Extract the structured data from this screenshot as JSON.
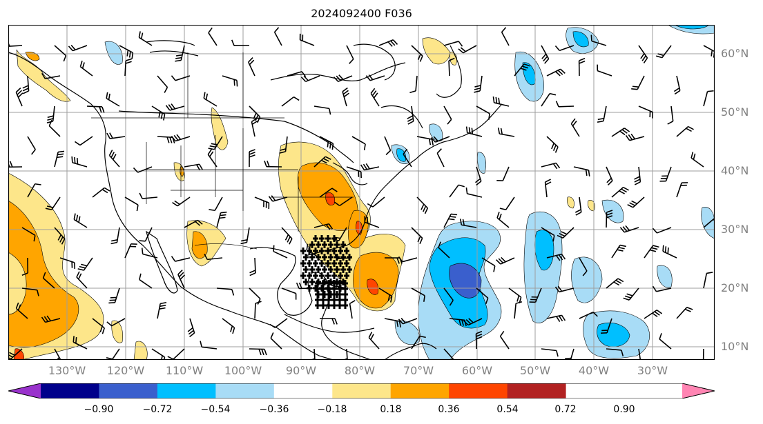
{
  "title": "2024092400 F036",
  "map": {
    "projection": "PlateCarree",
    "lon_range": [
      -143,
      -22
    ],
    "lat_range": [
      8,
      65
    ],
    "lat_labels": [
      "60°N",
      "50°N",
      "40°N",
      "30°N",
      "20°N",
      "10°N"
    ],
    "lon_labels": [
      "130°W",
      "120°W",
      "110°W",
      "100°W",
      "90°W",
      "80°W",
      "70°W",
      "60°W",
      "50°W",
      "40°W",
      "30°W"
    ],
    "gridlines": true,
    "field": "shaded anomaly with wind barbs overlay"
  },
  "colorbar": {
    "orientation": "horizontal",
    "extend": "both",
    "tick_labels": [
      "−0.90",
      "−0.72",
      "−0.54",
      "−0.36",
      "−0.18",
      "0.18",
      "0.36",
      "0.54",
      "0.72",
      "0.90"
    ],
    "levels": [
      -0.9,
      -0.72,
      -0.54,
      -0.36,
      -0.18,
      0.18,
      0.36,
      0.54,
      0.72,
      0.9
    ],
    "colors": [
      "#9932cc",
      "#00008b",
      "#3a5fcd",
      "#00bfff",
      "#a8dcf6",
      "#ffffff",
      "#fde68a",
      "#ffa500",
      "#ff4500",
      "#b22222",
      "#ff85b3"
    ]
  },
  "colors": {
    "land_line": "#000000",
    "grid": "#9e9e9e",
    "barb": "#000000",
    "axis_label": "#808080"
  }
}
